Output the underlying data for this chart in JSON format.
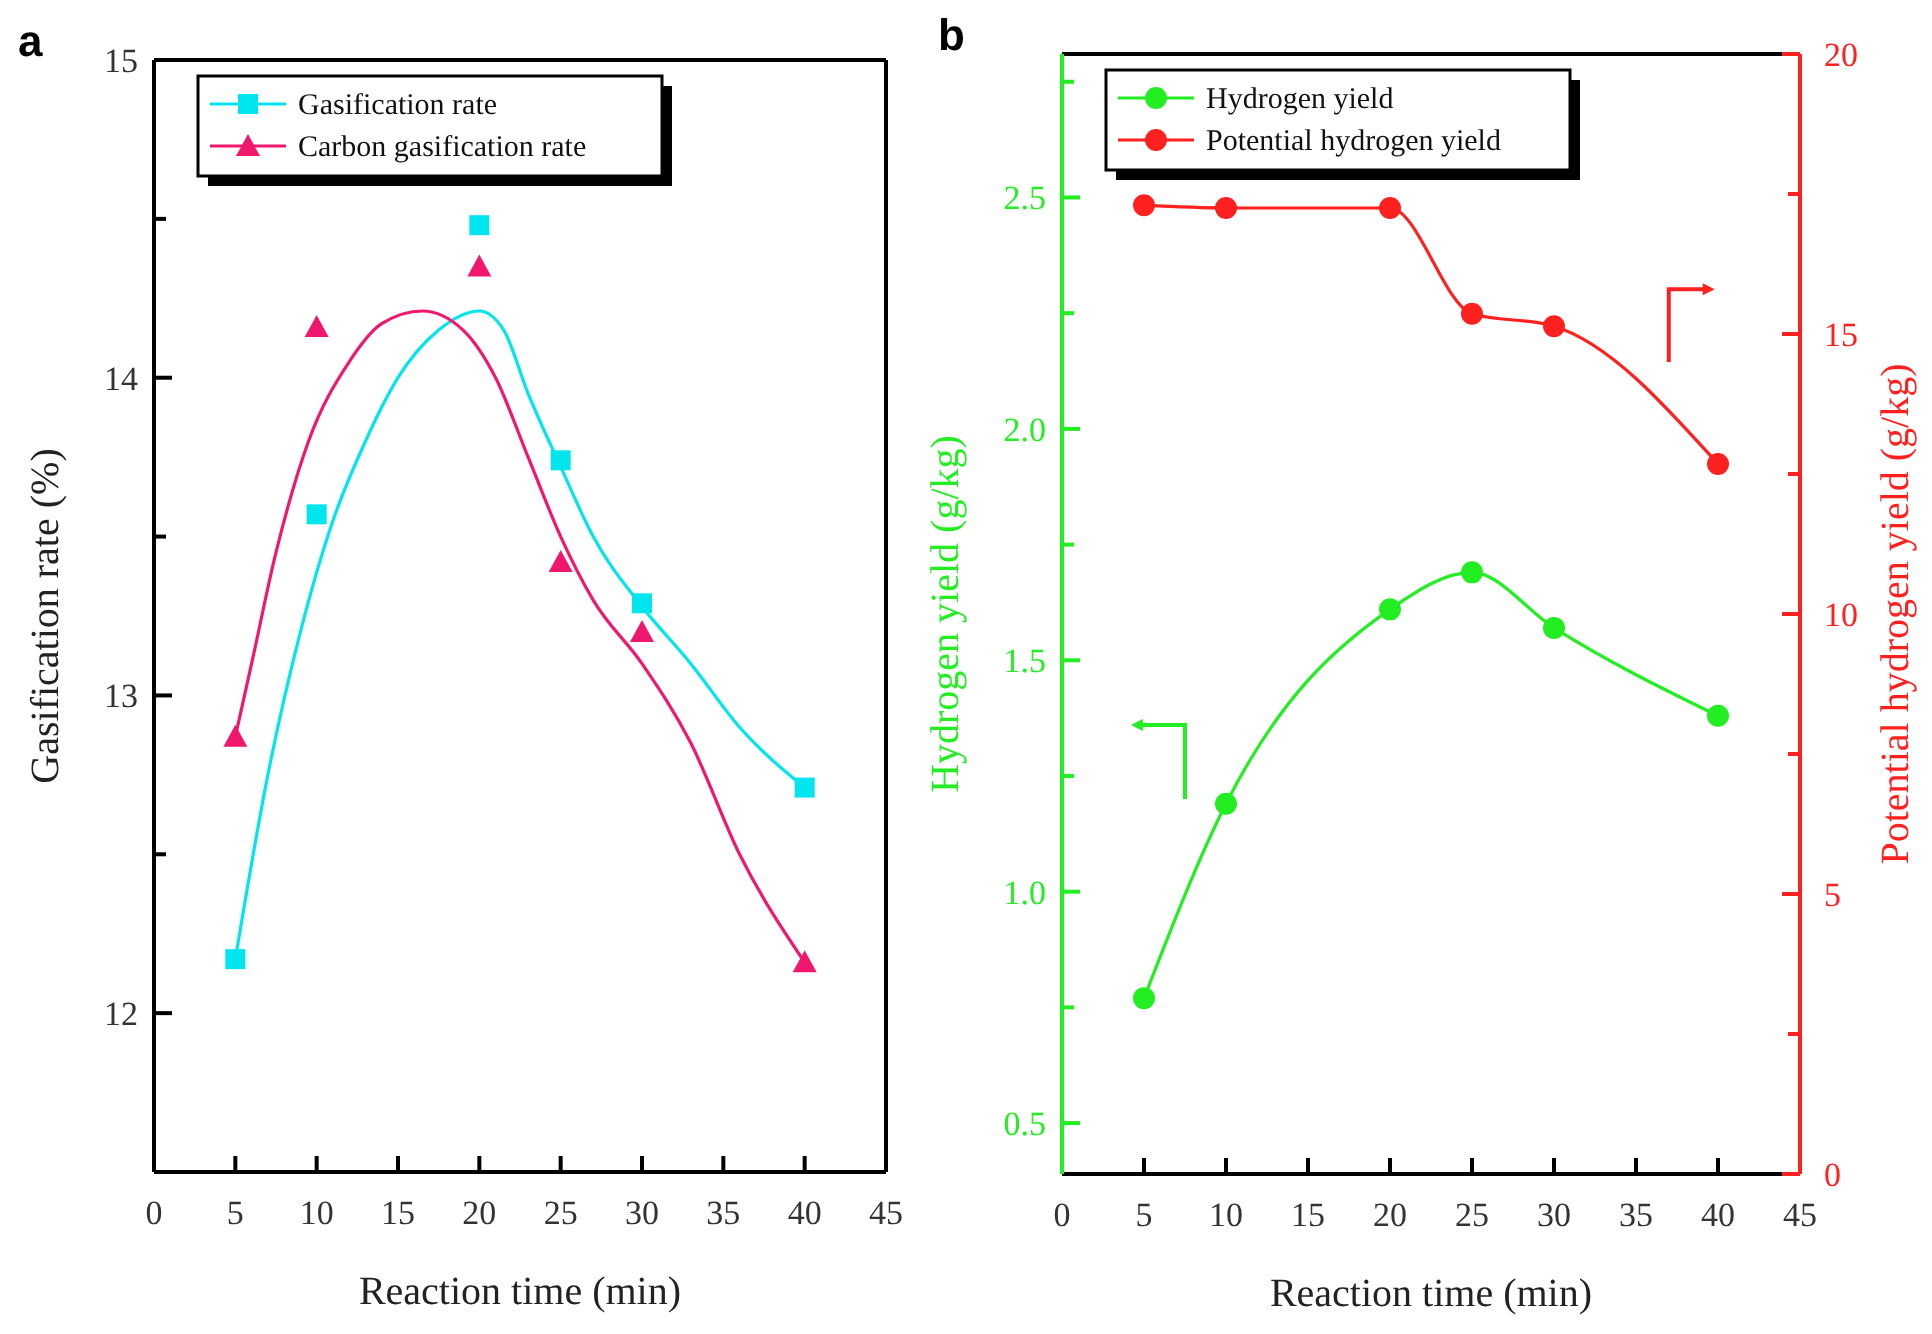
{
  "chart_data": [
    {
      "type": "scatter",
      "title": "a",
      "xlabel": "Reaction time (min)",
      "ylabel": "Gasification rate (%)",
      "x": [
        5,
        10,
        20,
        25,
        30,
        40
      ],
      "xlim": [
        0,
        45
      ],
      "xticks": [
        0,
        5,
        10,
        15,
        20,
        25,
        30,
        35,
        40,
        45
      ],
      "ylim": [
        11.5,
        15
      ],
      "yticks": [
        12,
        {
          "value": 12.5,
          "label": null
        },
        13,
        {
          "value": 13.5,
          "label": null
        },
        14,
        {
          "value": 14.5,
          "label": null
        },
        15
      ],
      "legend": "top left",
      "grid": false,
      "series": [
        {
          "name": "Gasification rate",
          "color": "#00e5ee",
          "marker": "square",
          "values": [
            12.17,
            13.57,
            14.48,
            13.74,
            13.29,
            12.71
          ]
        },
        {
          "name": "Carbon gasification rate",
          "color": "#f0186e",
          "marker": "triangle",
          "values": [
            12.87,
            14.16,
            14.35,
            13.42,
            13.2,
            12.16
          ]
        },
        {
          "type": "line",
          "color": "#00e5ee",
          "marker": "none",
          "x": [
            5,
            7,
            9,
            11,
            13,
            15,
            17.5,
            20,
            21.5,
            23,
            25,
            27,
            30,
            33,
            36,
            40
          ],
          "values": [
            12.17,
            12.75,
            13.2,
            13.55,
            13.8,
            14.0,
            14.15,
            14.21,
            14.15,
            13.95,
            13.72,
            13.5,
            13.28,
            13.1,
            12.9,
            12.71
          ]
        },
        {
          "type": "line",
          "color": "#f0186e",
          "marker": "none",
          "x": [
            5,
            6,
            7.5,
            9.5,
            12,
            14,
            16.5,
            19,
            21,
            23,
            25,
            27,
            30,
            33,
            36,
            40
          ],
          "values": [
            12.87,
            13.1,
            13.45,
            13.8,
            14.05,
            14.17,
            14.21,
            14.15,
            14.0,
            13.75,
            13.5,
            13.3,
            13.1,
            12.85,
            12.5,
            12.16
          ]
        }
      ]
    },
    {
      "type": "line",
      "title": "b",
      "xlabel": "Reaction time (min)",
      "ylabel": "Hydrogen yield (g/kg)",
      "y2label": "Potential hydrogen yield (g/kg)",
      "x": [
        5,
        10,
        20,
        25,
        30,
        40
      ],
      "xlim": [
        0,
        45
      ],
      "xticks": [
        0,
        5,
        10,
        15,
        20,
        25,
        30,
        35,
        40,
        45
      ],
      "ylim": [
        0.39,
        2.81
      ],
      "yticks": [
        0.5,
        {
          "value": 0.75,
          "label": null
        },
        "1.0",
        {
          "value": 1.25,
          "label": null
        },
        1.5,
        {
          "value": 1.75,
          "label": null
        },
        "2.0",
        {
          "value": 2.25,
          "label": null
        },
        2.5,
        {
          "value": 2.75,
          "label": null
        }
      ],
      "y2lim": [
        0,
        20
      ],
      "y2ticks": [
        0,
        {
          "value": 2.5,
          "label": null
        },
        5,
        {
          "value": 7.5,
          "label": null
        },
        10,
        {
          "value": 12.5,
          "label": null
        },
        15,
        {
          "value": 17.5,
          "label": null
        },
        20
      ],
      "legend": "top left",
      "grid": false,
      "marker": "circle",
      "series": [
        {
          "name": "Hydrogen yield",
          "color": "#22ee22",
          "values": [
            0.77,
            1.19,
            1.61,
            1.69,
            1.57,
            1.38
          ]
        },
        {
          "name": "Potential hydrogen yield",
          "color": "#ff2020",
          "axis": "y2",
          "values": [
            17.3,
            17.25,
            17.25,
            15.36,
            15.14,
            12.68
          ]
        }
      ]
    }
  ]
}
